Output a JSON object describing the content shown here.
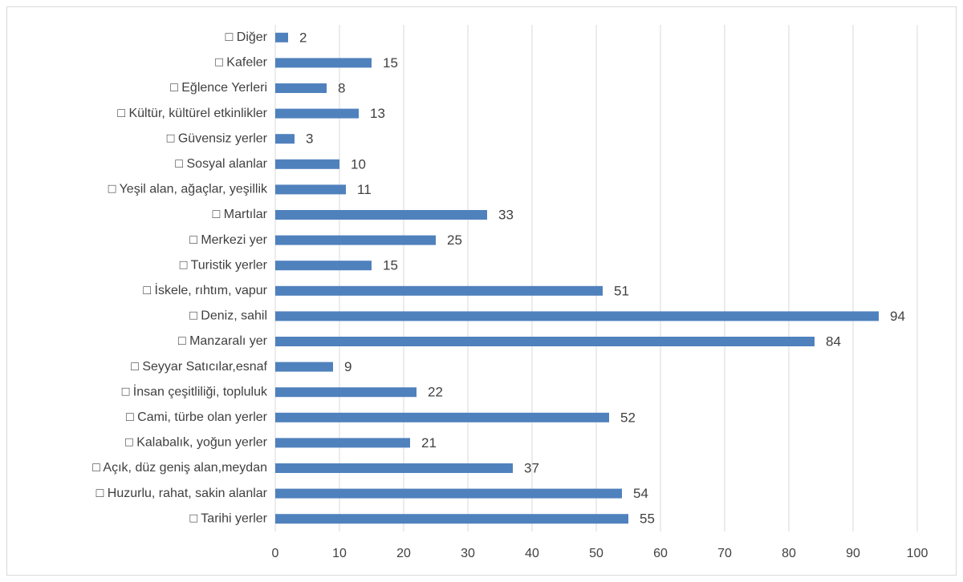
{
  "chart_data": {
    "type": "barh",
    "categories": [
      "□ Diğer",
      "□ Kafeler",
      "□ Eğlence Yerleri",
      "□ Kültür, kültürel etkinlikler",
      "□ Güvensiz yerler",
      "□ Sosyal alanlar",
      "□ Yeşil alan, ağaçlar, yeşillik",
      "□ Martılar",
      "□ Merkezi yer",
      "□ Turistik yerler",
      "□ İskele, rıhtım, vapur",
      "□ Deniz, sahil",
      "□ Manzaralı yer",
      "□ Seyyar Satıcılar,esnaf",
      "□ İnsan çeşitliliği, topluluk",
      "□ Cami, türbe olan yerler",
      "□ Kalabalık, yoğun yerler",
      "□ Açık, düz geniş alan,meydan",
      "□ Huzurlu, rahat, sakin alanlar",
      "□ Tarihi yerler"
    ],
    "values": [
      2,
      15,
      8,
      13,
      3,
      10,
      11,
      33,
      25,
      15,
      51,
      94,
      84,
      9,
      22,
      52,
      21,
      37,
      54,
      55
    ],
    "color": "#4f81bd",
    "xlim": [
      0,
      100
    ],
    "xticks": [
      0,
      10,
      20,
      30,
      40,
      50,
      60,
      70,
      80,
      90,
      100
    ],
    "grid": true
  }
}
